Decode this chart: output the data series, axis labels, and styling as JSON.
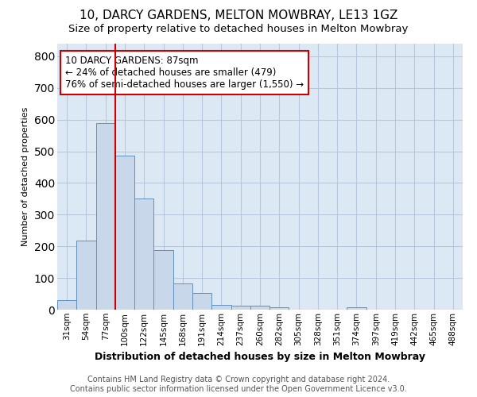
{
  "title1": "10, DARCY GARDENS, MELTON MOWBRAY, LE13 1GZ",
  "title2": "Size of property relative to detached houses in Melton Mowbray",
  "xlabel": "Distribution of detached houses by size in Melton Mowbray",
  "ylabel": "Number of detached properties",
  "categories": [
    "31sqm",
    "54sqm",
    "77sqm",
    "100sqm",
    "122sqm",
    "145sqm",
    "168sqm",
    "191sqm",
    "214sqm",
    "237sqm",
    "260sqm",
    "282sqm",
    "305sqm",
    "328sqm",
    "351sqm",
    "374sqm",
    "397sqm",
    "419sqm",
    "442sqm",
    "465sqm",
    "488sqm"
  ],
  "values": [
    30,
    218,
    590,
    487,
    350,
    188,
    83,
    52,
    15,
    12,
    12,
    7,
    0,
    0,
    0,
    8,
    0,
    0,
    0,
    0,
    0
  ],
  "bar_color": "#c8d8ea",
  "bar_edge_color": "#6090c0",
  "vline_x": 2.5,
  "vline_color": "#cc0000",
  "annotation_text": "10 DARCY GARDENS: 87sqm\n← 24% of detached houses are smaller (479)\n76% of semi-detached houses are larger (1,550) →",
  "annotation_box_color": "#ffffff",
  "annotation_box_edge_color": "#cc0000",
  "ylim": [
    0,
    840
  ],
  "yticks": [
    0,
    100,
    200,
    300,
    400,
    500,
    600,
    700,
    800
  ],
  "grid_color": "#b8c8dc",
  "background_color": "#dce8f4",
  "footer1": "Contains HM Land Registry data © Crown copyright and database right 2024.",
  "footer2": "Contains public sector information licensed under the Open Government Licence v3.0.",
  "title1_fontsize": 11,
  "title2_fontsize": 9.5,
  "xlabel_fontsize": 9,
  "ylabel_fontsize": 8,
  "tick_fontsize": 7.5,
  "annotation_fontsize": 8.5,
  "footer_fontsize": 7
}
